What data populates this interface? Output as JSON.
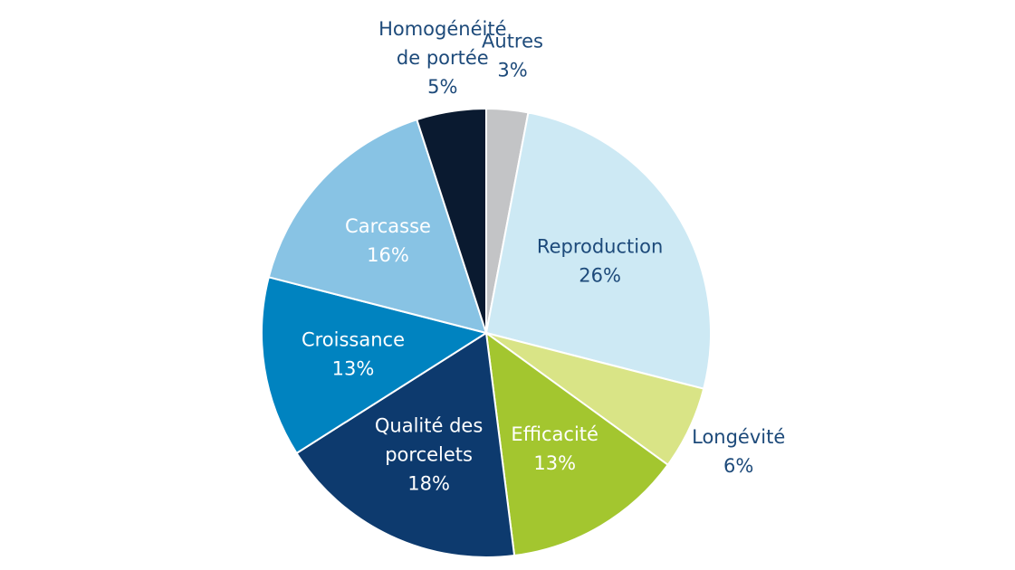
{
  "chart_data": {
    "type": "pie",
    "title": "",
    "slices": [
      {
        "lines": [
          "Autres",
          "3%"
        ],
        "value": 3,
        "color": "#c3c4c6",
        "label_color": "#1d4a7a",
        "placement": "outside"
      },
      {
        "lines": [
          "Reproduction",
          "26%"
        ],
        "value": 26,
        "color": "#cde9f4",
        "label_color": "#1d4a7a",
        "placement": "inside"
      },
      {
        "lines": [
          "Longévité",
          "6%"
        ],
        "value": 6,
        "color": "#d9e486",
        "label_color": "#1d4a7a",
        "placement": "outside"
      },
      {
        "lines": [
          "Efficacité",
          "13%"
        ],
        "value": 13,
        "color": "#a3c62f",
        "label_color": "#ffffff",
        "placement": "inside"
      },
      {
        "lines": [
          "Qualité des",
          "porcelets",
          "18%"
        ],
        "value": 18,
        "color": "#0d3a6e",
        "label_color": "#ffffff",
        "placement": "inside"
      },
      {
        "lines": [
          "Croissance",
          "13%"
        ],
        "value": 13,
        "color": "#0083c0",
        "label_color": "#ffffff",
        "placement": "inside"
      },
      {
        "lines": [
          "Carcasse",
          "16%"
        ],
        "value": 16,
        "color": "#88c3e4",
        "label_color": "#ffffff",
        "placement": "inside"
      },
      {
        "lines": [
          "Homogénéité",
          "de portée",
          "5%"
        ],
        "value": 5,
        "color": "#0a1a30",
        "label_color": "#1d4a7a",
        "placement": "outside"
      }
    ]
  }
}
